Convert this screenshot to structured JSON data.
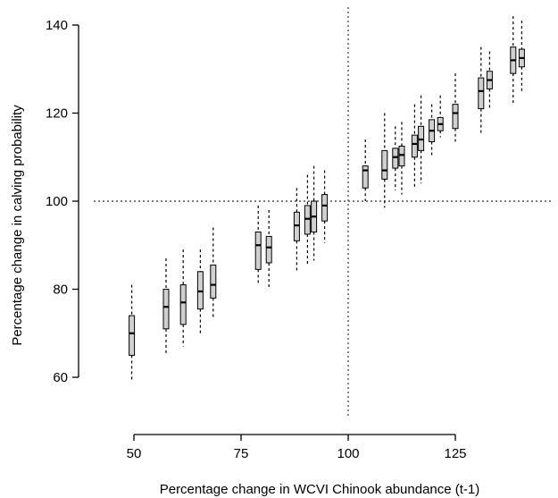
{
  "chart_data": {
    "type": "boxplot",
    "xlabel": "Percentage change in WCVI Chinook abundance (t-1)",
    "ylabel": "Percentage change in calving probability",
    "xlim": [
      43,
      145
    ],
    "ylim": [
      52,
      142
    ],
    "x_axis_range": [
      50,
      125
    ],
    "y_axis_range": [
      60,
      140
    ],
    "xticks": [
      50,
      75,
      100,
      125
    ],
    "yticks": [
      60,
      80,
      100,
      120,
      140
    ],
    "reference_lines": {
      "x": 100,
      "y": 100
    },
    "boxes": [
      {
        "x": 49.5,
        "whislo": 59.5,
        "q1": 65.0,
        "med": 70.0,
        "q3": 74.0,
        "whishi": 81.0
      },
      {
        "x": 57.5,
        "whislo": 65.0,
        "q1": 71.0,
        "med": 76.0,
        "q3": 80.0,
        "whishi": 87.0
      },
      {
        "x": 61.5,
        "whislo": 67.0,
        "q1": 72.0,
        "med": 77.0,
        "q3": 81.0,
        "whishi": 89.0
      },
      {
        "x": 65.5,
        "whislo": 70.0,
        "q1": 75.5,
        "med": 79.5,
        "q3": 84.0,
        "whishi": 89.0
      },
      {
        "x": 68.5,
        "whislo": 73.5,
        "q1": 78.0,
        "med": 81.0,
        "q3": 85.5,
        "whishi": 94.0
      },
      {
        "x": 79.0,
        "whislo": 81.0,
        "q1": 84.5,
        "med": 90.0,
        "q3": 93.0,
        "whishi": 99.0
      },
      {
        "x": 81.5,
        "whislo": 80.5,
        "q1": 86.0,
        "med": 89.5,
        "q3": 92.0,
        "whishi": 98.0
      },
      {
        "x": 88.0,
        "whislo": 84.0,
        "q1": 91.0,
        "med": 94.5,
        "q3": 97.5,
        "whishi": 103.0
      },
      {
        "x": 90.5,
        "whislo": 85.5,
        "q1": 92.5,
        "med": 96.0,
        "q3": 99.0,
        "whishi": 106.0
      },
      {
        "x": 92.0,
        "whislo": 86.5,
        "q1": 93.0,
        "med": 96.5,
        "q3": 100.0,
        "whishi": 108.0
      },
      {
        "x": 94.5,
        "whislo": 90.5,
        "q1": 95.5,
        "med": 99.0,
        "q3": 101.5,
        "whishi": 107.0
      },
      {
        "x": 104.0,
        "whislo": 100.0,
        "q1": 103.0,
        "med": 107.0,
        "q3": 108.0,
        "whishi": 114.0
      },
      {
        "x": 108.5,
        "whislo": 98.5,
        "q1": 105.0,
        "med": 107.0,
        "q3": 111.5,
        "whishi": 120.0
      },
      {
        "x": 111.0,
        "whislo": 102.5,
        "q1": 107.5,
        "med": 110.0,
        "q3": 112.0,
        "whishi": 117.0
      },
      {
        "x": 112.5,
        "whislo": 101.5,
        "q1": 108.0,
        "med": 110.5,
        "q3": 112.5,
        "whishi": 118.0
      },
      {
        "x": 115.5,
        "whislo": 103.0,
        "q1": 110.0,
        "med": 113.0,
        "q3": 115.0,
        "whishi": 122.0
      },
      {
        "x": 117.0,
        "whislo": 104.0,
        "q1": 111.5,
        "med": 114.0,
        "q3": 117.0,
        "whishi": 124.0
      },
      {
        "x": 119.5,
        "whislo": 110.0,
        "q1": 113.5,
        "med": 116.0,
        "q3": 118.5,
        "whishi": 122.0
      },
      {
        "x": 121.5,
        "whislo": 114.5,
        "q1": 116.0,
        "med": 117.5,
        "q3": 119.0,
        "whishi": 124.0
      },
      {
        "x": 125.0,
        "whislo": 113.5,
        "q1": 116.5,
        "med": 120.0,
        "q3": 122.0,
        "whishi": 129.0
      },
      {
        "x": 131.0,
        "whislo": 115.5,
        "q1": 121.0,
        "med": 125.0,
        "q3": 128.0,
        "whishi": 135.0
      },
      {
        "x": 133.0,
        "whislo": 121.0,
        "q1": 125.5,
        "med": 127.5,
        "q3": 129.5,
        "whishi": 134.0
      },
      {
        "x": 138.5,
        "whislo": 122.0,
        "q1": 129.0,
        "med": 132.0,
        "q3": 135.0,
        "whishi": 142.0
      },
      {
        "x": 140.5,
        "whislo": 125.0,
        "q1": 130.5,
        "med": 132.5,
        "q3": 134.5,
        "whishi": 141.0
      }
    ],
    "colors": {
      "box_fill": "#d0d0d0",
      "stroke": "#000000",
      "reference_line": "#555555"
    }
  }
}
